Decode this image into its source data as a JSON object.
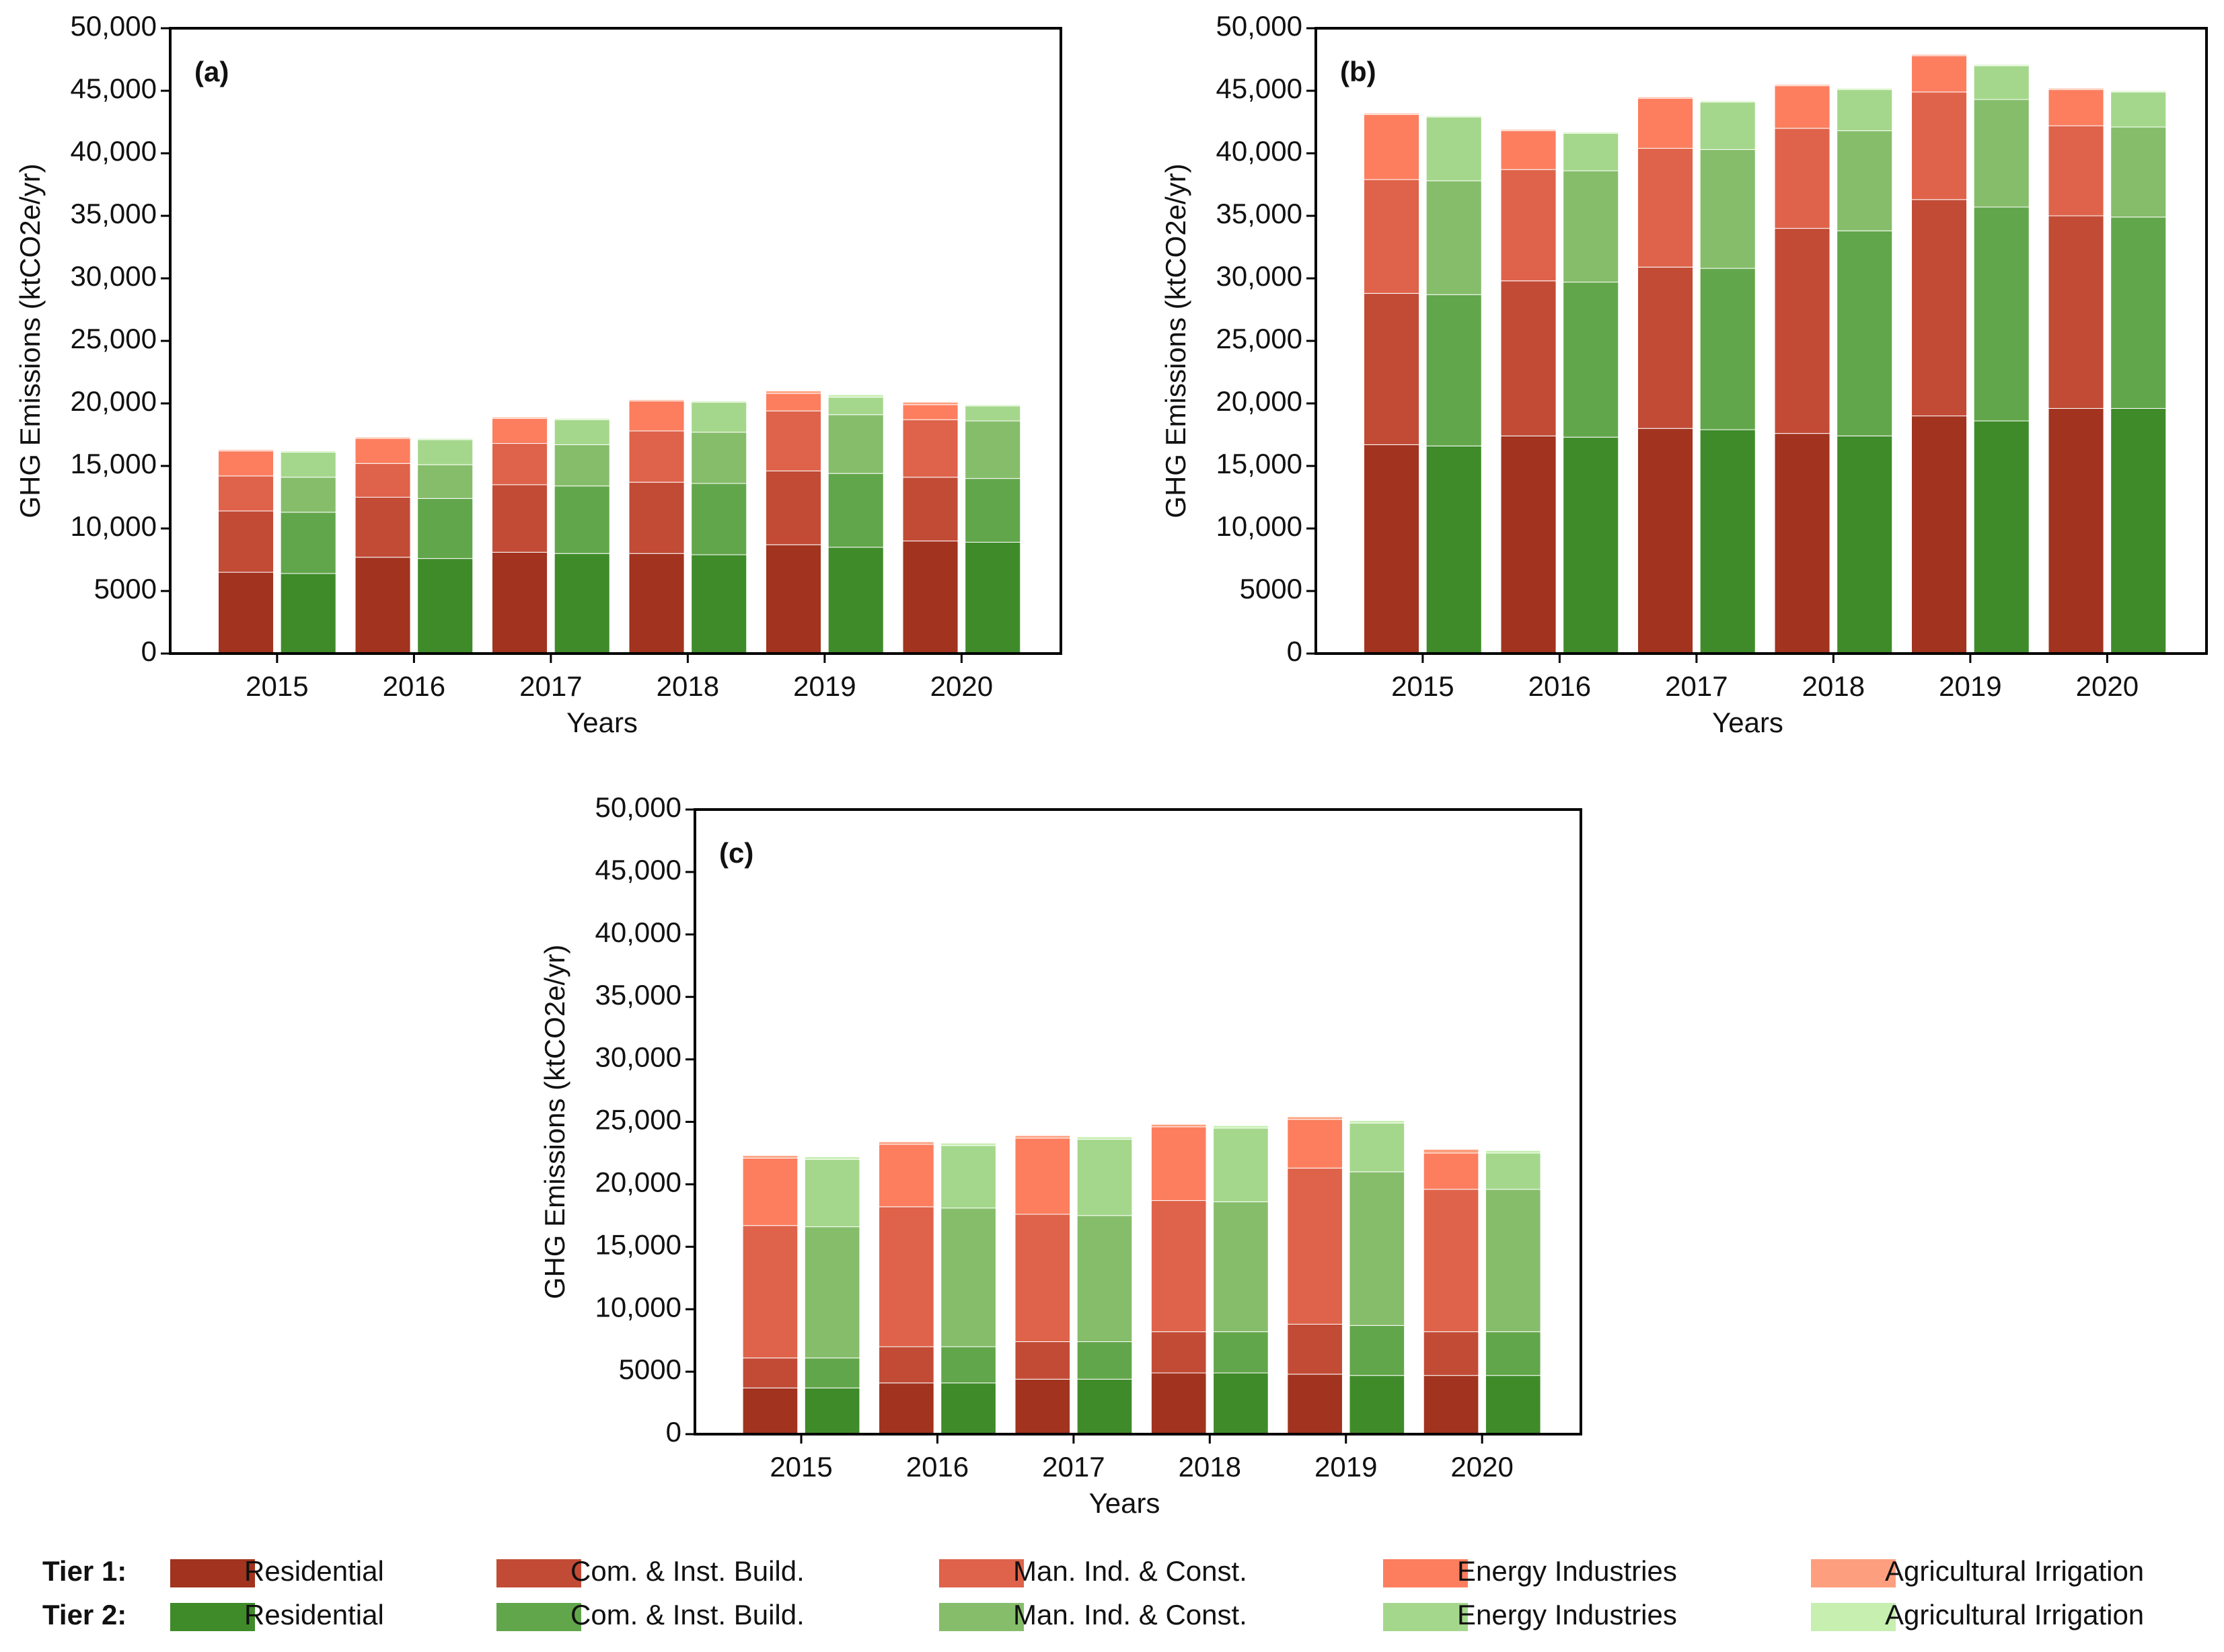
{
  "chart_data": [
    {
      "type": "bar",
      "label": "(a)",
      "x_label": "Years",
      "y_label": "GHG Emissions (ktCO2e/yr)",
      "categories": [
        "2015",
        "2016",
        "2017",
        "2018",
        "2019",
        "2020"
      ],
      "ylim": [
        0,
        50000
      ],
      "yticks": [
        0,
        5000,
        {
          "value": 10000,
          "label": "10,000"
        },
        {
          "value": 15000,
          "label": "15,000"
        },
        {
          "value": 20000,
          "label": "20,000"
        },
        {
          "value": 25000,
          "label": "25,000"
        },
        {
          "value": 30000,
          "label": "30,000"
        },
        {
          "value": 35000,
          "label": "35,000"
        },
        {
          "value": 40000,
          "label": "40,000"
        },
        {
          "value": 45000,
          "label": "45,000"
        },
        {
          "value": 50000,
          "label": "50,000"
        }
      ],
      "tiers": [
        {
          "series": [
            {
              "values": [
                6500,
                7700,
                8100,
                8000,
                8700,
                9000
              ]
            },
            {
              "values": [
                4900,
                4800,
                5400,
                5700,
                5900,
                5100
              ]
            },
            {
              "values": [
                2800,
                2700,
                3300,
                4100,
                4800,
                4600
              ]
            },
            {
              "values": [
                2000,
                2000,
                2000,
                2400,
                1400,
                1200
              ]
            },
            {
              "values": [
                100,
                100,
                100,
                100,
                200,
                200
              ]
            }
          ]
        },
        {
          "series": [
            {
              "values": [
                6400,
                7600,
                8000,
                7900,
                8500,
                8900
              ]
            },
            {
              "values": [
                4900,
                4800,
                5400,
                5700,
                5900,
                5100
              ]
            },
            {
              "values": [
                2800,
                2700,
                3300,
                4100,
                4700,
                4600
              ]
            },
            {
              "values": [
                2000,
                2000,
                2000,
                2400,
                1400,
                1200
              ]
            },
            {
              "values": [
                100,
                100,
                100,
                100,
                200,
                100
              ]
            }
          ]
        }
      ]
    },
    {
      "type": "bar",
      "label": "(b)",
      "x_label": "Years",
      "y_label": "GHG Emissions (ktCO2e/yr)",
      "categories": [
        "2015",
        "2016",
        "2017",
        "2018",
        "2019",
        "2020"
      ],
      "ylim": [
        0,
        50000
      ],
      "yticks": [
        0,
        5000,
        {
          "value": 10000,
          "label": "10,000"
        },
        {
          "value": 15000,
          "label": "15,000"
        },
        {
          "value": 20000,
          "label": "20,000"
        },
        {
          "value": 25000,
          "label": "25,000"
        },
        {
          "value": 30000,
          "label": "30,000"
        },
        {
          "value": 35000,
          "label": "35,000"
        },
        {
          "value": 40000,
          "label": "40,000"
        },
        {
          "value": 45000,
          "label": "45,000"
        },
        {
          "value": 50000,
          "label": "50,000"
        }
      ],
      "tiers": [
        {
          "series": [
            {
              "values": [
                16700,
                17400,
                18000,
                17600,
                19000,
                19600
              ]
            },
            {
              "values": [
                12100,
                12400,
                12900,
                16400,
                17300,
                15400
              ]
            },
            {
              "values": [
                9100,
                8900,
                9500,
                8000,
                8600,
                7200
              ]
            },
            {
              "values": [
                5200,
                3100,
                4000,
                3400,
                2900,
                2900
              ]
            },
            {
              "values": [
                100,
                100,
                100,
                100,
                100,
                100
              ]
            }
          ]
        },
        {
          "series": [
            {
              "values": [
                16600,
                17300,
                17900,
                17400,
                18600,
                19600
              ]
            },
            {
              "values": [
                12100,
                12400,
                12900,
                16400,
                17100,
                15300
              ]
            },
            {
              "values": [
                9100,
                8900,
                9500,
                8000,
                8600,
                7200
              ]
            },
            {
              "values": [
                5100,
                3000,
                3800,
                3300,
                2700,
                2800
              ]
            },
            {
              "values": [
                100,
                100,
                100,
                100,
                100,
                100
              ]
            }
          ]
        }
      ]
    },
    {
      "type": "bar",
      "label": "(c)",
      "x_label": "Years",
      "y_label": "GHG Emissions (ktCO2e/yr)",
      "categories": [
        "2015",
        "2016",
        "2017",
        "2018",
        "2019",
        "2020"
      ],
      "ylim": [
        0,
        50000
      ],
      "yticks": [
        0,
        5000,
        {
          "value": 10000,
          "label": "10,000"
        },
        {
          "value": 15000,
          "label": "15,000"
        },
        {
          "value": 20000,
          "label": "20,000"
        },
        {
          "value": 25000,
          "label": "25,000"
        },
        {
          "value": 30000,
          "label": "30,000"
        },
        {
          "value": 35000,
          "label": "35,000"
        },
        {
          "value": 40000,
          "label": "40,000"
        },
        {
          "value": 45000,
          "label": "45,000"
        },
        {
          "value": 50000,
          "label": "50,000"
        }
      ],
      "tiers": [
        {
          "series": [
            {
              "values": [
                3700,
                4100,
                4400,
                4900,
                4800,
                4700
              ]
            },
            {
              "values": [
                2400,
                2900,
                3000,
                3300,
                4000,
                3500
              ]
            },
            {
              "values": [
                10600,
                11200,
                10200,
                10500,
                12500,
                11400
              ]
            },
            {
              "values": [
                5400,
                5000,
                6100,
                5900,
                3900,
                2900
              ]
            },
            {
              "values": [
                200,
                200,
                200,
                200,
                200,
                300
              ]
            }
          ]
        },
        {
          "series": [
            {
              "values": [
                3700,
                4100,
                4400,
                4900,
                4700,
                4700
              ]
            },
            {
              "values": [
                2400,
                2900,
                3000,
                3300,
                4000,
                3500
              ]
            },
            {
              "values": [
                10500,
                11100,
                10100,
                10400,
                12300,
                11400
              ]
            },
            {
              "values": [
                5400,
                5000,
                6100,
                5900,
                3900,
                2900
              ]
            },
            {
              "values": [
                200,
                200,
                200,
                200,
                200,
                200
              ]
            }
          ]
        }
      ]
    }
  ],
  "legend": [
    {
      "label": "Tier 1:",
      "entries": [
        {
          "name": "Residential",
          "color": "#a1331f"
        },
        {
          "name": "Com. & Inst. Build.",
          "color": "#c24b36"
        },
        {
          "name": "Man. Ind. & Const.",
          "color": "#df634a"
        },
        {
          "name": "Energy Industries",
          "color": "#fc7e5e"
        },
        {
          "name": "Agricultural Irrigation",
          "color": "#fd9f7e"
        }
      ]
    },
    {
      "label": "Tier 2:",
      "entries": [
        {
          "name": "Residential",
          "color": "#3f8b2a"
        },
        {
          "name": "Com. & Inst. Build.",
          "color": "#62a64b"
        },
        {
          "name": "Man. Ind. & Const.",
          "color": "#86bd6b"
        },
        {
          "name": "Energy Industries",
          "color": "#a4d78b"
        },
        {
          "name": "Agricultural Irrigation",
          "color": "#c6efb0"
        }
      ]
    }
  ]
}
